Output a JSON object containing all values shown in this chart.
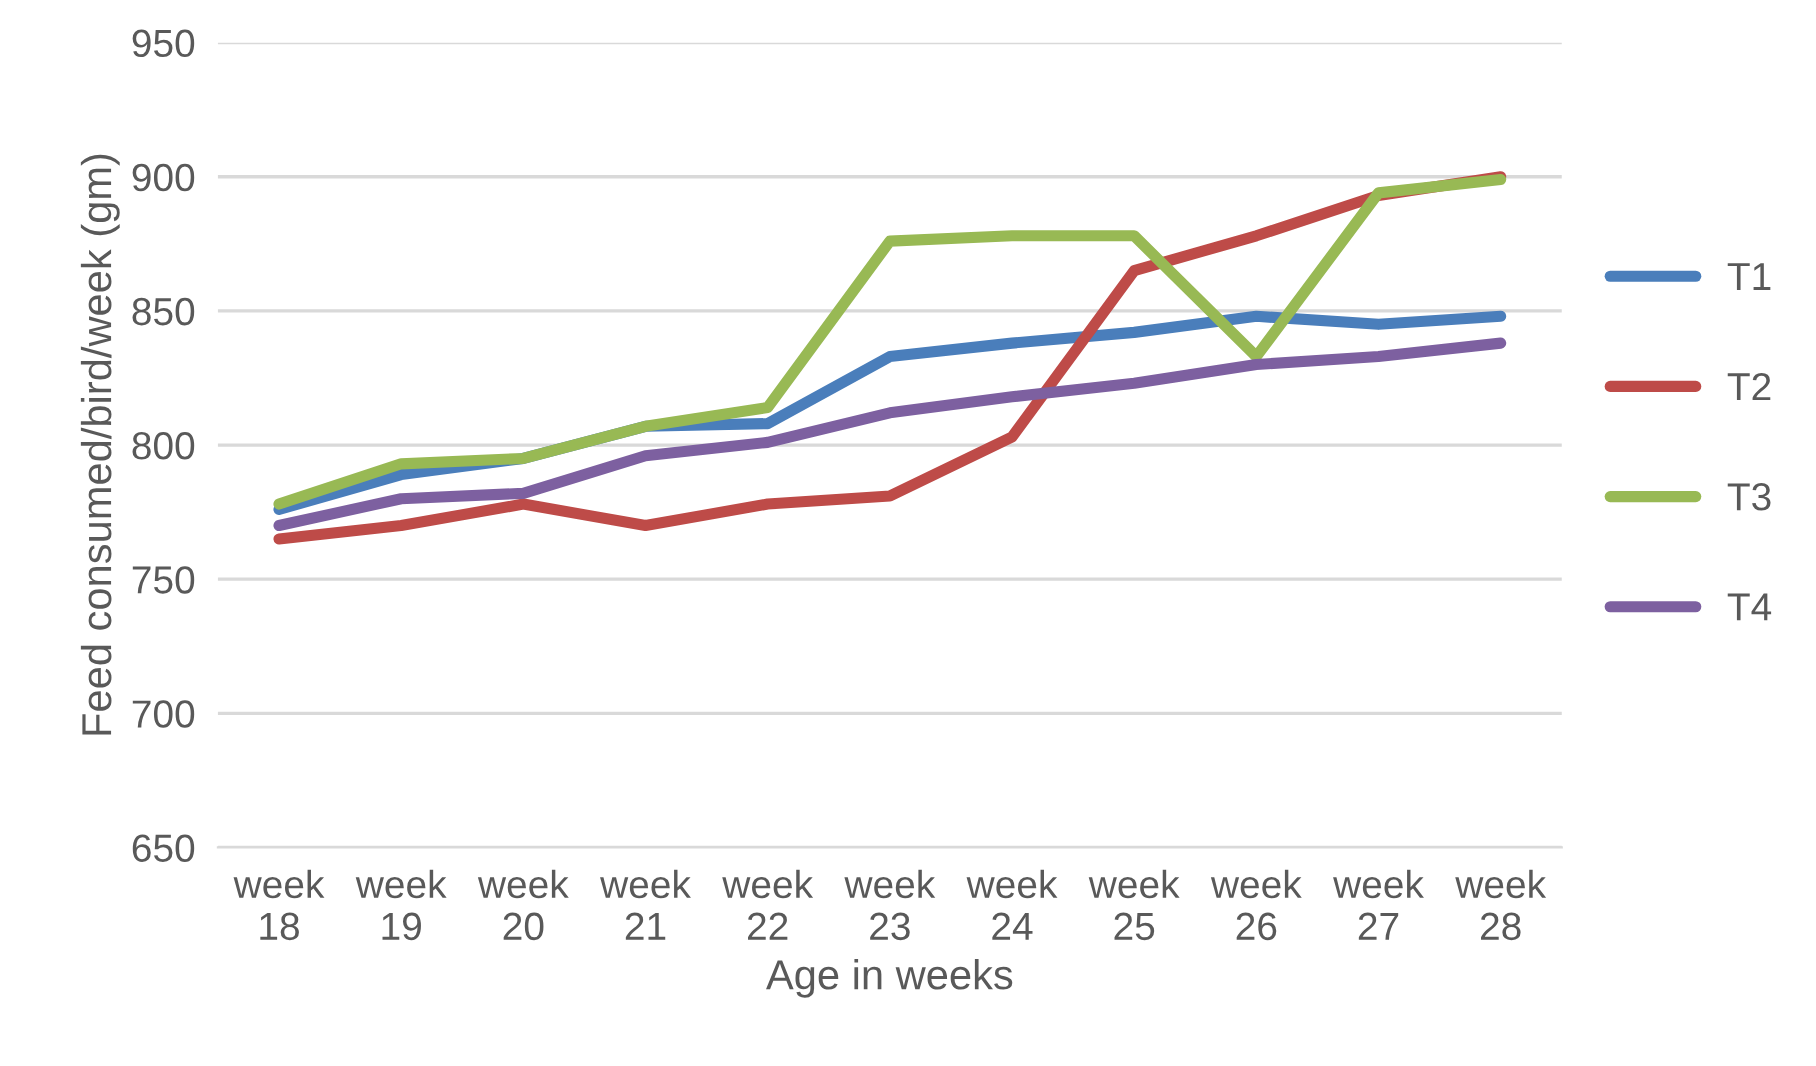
{
  "chart_data": {
    "type": "line",
    "xlabel": "Age in weeks",
    "ylabel": "Feed consumed/bird/week (gm)",
    "categories": [
      "week\n18",
      "week\n19",
      "week\n20",
      "week\n21",
      "week\n22",
      "week\n23",
      "week\n24",
      "week\n25",
      "week\n26",
      "week\n27",
      "week\n28"
    ],
    "series": [
      {
        "name": "T1",
        "color": "#4a7ebb",
        "values": [
          776,
          789,
          795,
          807,
          808,
          833,
          838,
          842,
          848,
          845,
          848
        ]
      },
      {
        "name": "T2",
        "color": "#be4b48",
        "values": [
          765,
          770,
          778,
          770,
          778,
          781,
          803,
          865,
          878,
          893,
          900
        ]
      },
      {
        "name": "T3",
        "color": "#98b954",
        "values": [
          778,
          793,
          795,
          807,
          814,
          876,
          878,
          878,
          833,
          894,
          899
        ]
      },
      {
        "name": "T4",
        "color": "#7d60a0",
        "values": [
          770,
          780,
          782,
          796,
          801,
          812,
          818,
          823,
          830,
          833,
          838
        ]
      }
    ],
    "ylim": [
      650,
      950
    ],
    "yticks": [
      650,
      700,
      750,
      800,
      850,
      900,
      950
    ],
    "grid": "y",
    "legend": "right",
    "marker": "none",
    "line_style": "solid"
  }
}
